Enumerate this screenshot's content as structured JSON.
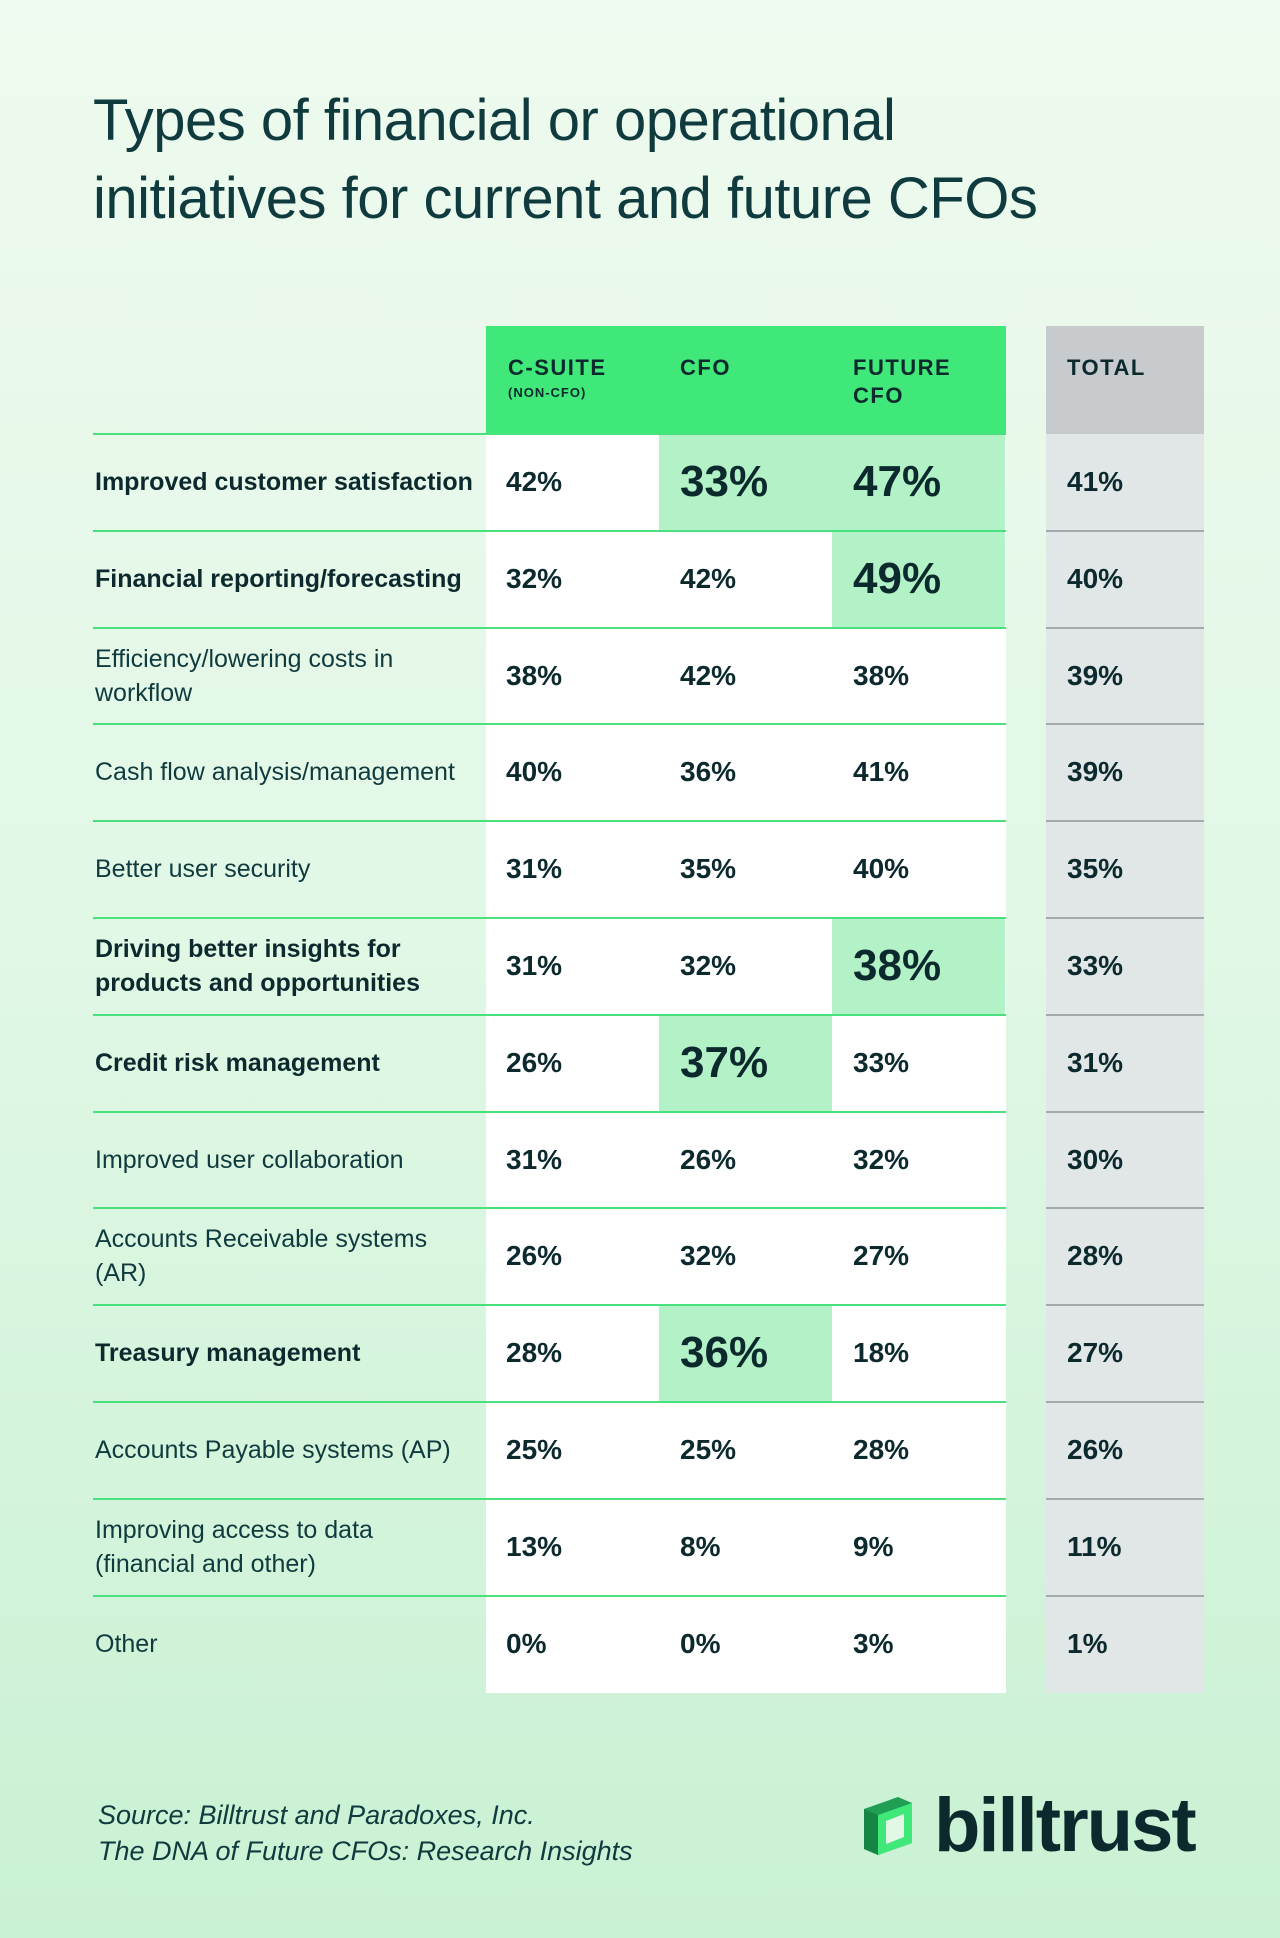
{
  "title_lines": [
    "Types of financial or operational",
    "initiatives for current and future CFOs"
  ],
  "colors": {
    "group_header": "#3fe878",
    "highlight": "#b3f2c6",
    "total_header": "#c7cbcd",
    "total_body": "#e1e6e6"
  },
  "chart_data": {
    "type": "table",
    "title": "Types of financial or operational initiatives for current and future CFOs",
    "columns": [
      {
        "label": "C-SUITE",
        "sublabel": "(NON-CFO)"
      },
      {
        "label": "CFO",
        "sublabel": ""
      },
      {
        "label": "FUTURE CFO",
        "sublabel": ""
      },
      {
        "label": "TOTAL",
        "sublabel": ""
      }
    ],
    "rows": [
      {
        "label": "Improved customer satisfaction",
        "bold": true,
        "values": [
          "42%",
          "33%",
          "47%",
          "41%"
        ],
        "highlight": [
          false,
          true,
          true,
          false
        ]
      },
      {
        "label": "Financial reporting/forecasting",
        "bold": true,
        "values": [
          "32%",
          "42%",
          "49%",
          "40%"
        ],
        "highlight": [
          false,
          false,
          true,
          false
        ]
      },
      {
        "label": "Efficiency/lowering costs in workflow",
        "bold": false,
        "values": [
          "38%",
          "42%",
          "38%",
          "39%"
        ],
        "highlight": [
          false,
          false,
          false,
          false
        ]
      },
      {
        "label": "Cash flow analysis/management",
        "bold": false,
        "values": [
          "40%",
          "36%",
          "41%",
          "39%"
        ],
        "highlight": [
          false,
          false,
          false,
          false
        ]
      },
      {
        "label": "Better user security",
        "bold": false,
        "values": [
          "31%",
          "35%",
          "40%",
          "35%"
        ],
        "highlight": [
          false,
          false,
          false,
          false
        ]
      },
      {
        "label": "Driving better insights for products and opportunities",
        "bold": true,
        "values": [
          "31%",
          "32%",
          "38%",
          "33%"
        ],
        "highlight": [
          false,
          false,
          true,
          false
        ]
      },
      {
        "label": "Credit risk management",
        "bold": true,
        "values": [
          "26%",
          "37%",
          "33%",
          "31%"
        ],
        "highlight": [
          false,
          true,
          false,
          false
        ]
      },
      {
        "label": "Improved user collaboration",
        "bold": false,
        "values": [
          "31%",
          "26%",
          "32%",
          "30%"
        ],
        "highlight": [
          false,
          false,
          false,
          false
        ]
      },
      {
        "label": "Accounts Receivable systems (AR)",
        "bold": false,
        "values": [
          "26%",
          "32%",
          "27%",
          "28%"
        ],
        "highlight": [
          false,
          false,
          false,
          false
        ]
      },
      {
        "label": "Treasury management",
        "bold": true,
        "values": [
          "28%",
          "36%",
          "18%",
          "27%"
        ],
        "highlight": [
          false,
          true,
          false,
          false
        ]
      },
      {
        "label": "Accounts Payable systems (AP)",
        "bold": false,
        "values": [
          "25%",
          "25%",
          "28%",
          "26%"
        ],
        "highlight": [
          false,
          false,
          false,
          false
        ]
      },
      {
        "label": "Improving access to data (financial and other)",
        "bold": false,
        "values": [
          "13%",
          "8%",
          "9%",
          "11%"
        ],
        "highlight": [
          false,
          false,
          false,
          false
        ]
      },
      {
        "label": "Other",
        "bold": false,
        "values": [
          "0%",
          "0%",
          "3%",
          "1%"
        ],
        "highlight": [
          false,
          false,
          false,
          false
        ]
      }
    ]
  },
  "source": {
    "line1": "Source: Billtrust and Paradoxes, Inc.",
    "line2": "The DNA of Future CFOs: Research Insights"
  },
  "logo": {
    "text": "billtrust",
    "icon": "billtrust-logo-icon"
  }
}
